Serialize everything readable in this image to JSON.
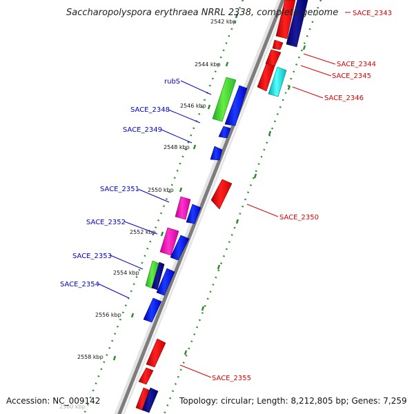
{
  "title": "Saccharopolyspora erythraea NRRL 2338, complete genome",
  "accession": "Accession: NC_009142",
  "topology": "Topology: circular; Length: 8,212,805 bp; Genes: 7,259",
  "colors": {
    "forward_label": "#0000cc",
    "reverse_label": "#dd0000",
    "tick": "#2d8a2d",
    "backbone": "#888888"
  },
  "kbp_ticks": [
    "2542 kbp",
    "2544 kbp",
    "2546 kbp",
    "2548 kbp",
    "2550 kbp",
    "2552 kbp",
    "2554 kbp",
    "2556 kbp",
    "2558 kbp",
    "2560 kbp"
  ],
  "forward_labels": [
    "rubS",
    "SACE_2348",
    "SACE_2349",
    "SACE_2351",
    "SACE_2352",
    "SACE_2353",
    "SACE_2354"
  ],
  "reverse_labels": [
    "SACE_2343",
    "SACE_2344",
    "SACE_2345",
    "SACE_2346",
    "SACE_2350",
    "SACE_2355"
  ]
}
